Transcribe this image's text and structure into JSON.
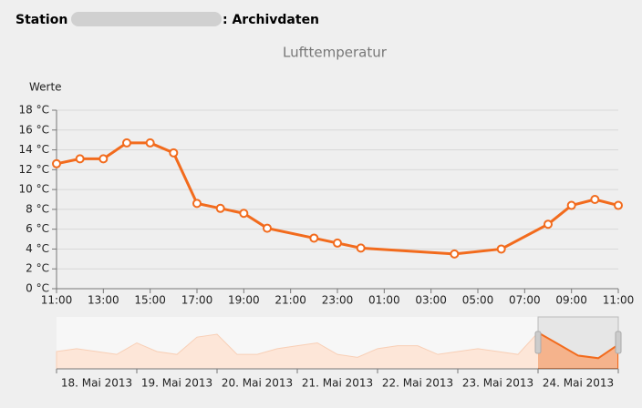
{
  "header": {
    "prefix": "Station",
    "suffix": ": Archivdaten"
  },
  "chart_data": {
    "type": "line",
    "title": "Lufttemperatur",
    "y_label": "Werte",
    "x": [
      11,
      12,
      13,
      14,
      15,
      16,
      17,
      18,
      19,
      20,
      22,
      23,
      24,
      28,
      30,
      32,
      33,
      34,
      35
    ],
    "series": [
      {
        "name": "Lufttemperatur",
        "color": "#f26b1d",
        "values": [
          12.6,
          13.1,
          13.1,
          14.7,
          14.7,
          13.7,
          8.6,
          8.1,
          7.6,
          6.1,
          5.1,
          4.6,
          4.1,
          3.5,
          4.0,
          6.5,
          8.4,
          9.0,
          8.4
        ]
      }
    ],
    "xlim": [
      11,
      35
    ],
    "xticks": [
      {
        "value": 11,
        "label": "11:00"
      },
      {
        "value": 13,
        "label": "13:00"
      },
      {
        "value": 15,
        "label": "15:00"
      },
      {
        "value": 17,
        "label": "17:00"
      },
      {
        "value": 19,
        "label": "19:00"
      },
      {
        "value": 21,
        "label": "21:00"
      },
      {
        "value": 23,
        "label": "23:00"
      },
      {
        "value": 25,
        "label": "01:00"
      },
      {
        "value": 27,
        "label": "03:00"
      },
      {
        "value": 29,
        "label": "05:00"
      },
      {
        "value": 31,
        "label": "07:00"
      },
      {
        "value": 33,
        "label": "09:00"
      },
      {
        "value": 35,
        "label": "11:00"
      }
    ],
    "ylim": [
      0,
      18
    ],
    "yticks": [
      {
        "value": 0,
        "label": "0 °C"
      },
      {
        "value": 2,
        "label": "2 °C"
      },
      {
        "value": 4,
        "label": "4 °C"
      },
      {
        "value": 6,
        "label": "6 °C"
      },
      {
        "value": 8,
        "label": "8 °C"
      },
      {
        "value": 10,
        "label": "10 °C"
      },
      {
        "value": 12,
        "label": "12 °C"
      },
      {
        "value": 14,
        "label": "14 °C"
      },
      {
        "value": 16,
        "label": "16 °C"
      },
      {
        "value": 18,
        "label": "18 °C"
      }
    ],
    "grid": true,
    "navigator": {
      "x": [
        0,
        0.25,
        0.5,
        0.75,
        1,
        1.25,
        1.5,
        1.75,
        2,
        2.25,
        2.5,
        2.75,
        3,
        3.25,
        3.5,
        3.75,
        4,
        4.25,
        4.5,
        4.75,
        5,
        5.25,
        5.5,
        5.75,
        6,
        6.25,
        6.5,
        6.75,
        7
      ],
      "values": [
        6,
        7,
        6,
        5,
        9,
        6,
        5,
        11,
        12,
        5,
        5,
        7,
        8,
        9,
        5,
        4,
        7,
        8,
        8,
        5,
        6,
        7,
        6,
        5,
        12.6,
        8.6,
        4.6,
        3.7,
        8.4
      ],
      "xlim": [
        0,
        7
      ],
      "ylim": [
        0,
        18
      ],
      "selected": [
        6,
        7
      ],
      "xticks": [
        {
          "value": 0.5,
          "label": "18. Mai 2013"
        },
        {
          "value": 1.5,
          "label": "19. Mai 2013"
        },
        {
          "value": 2.5,
          "label": "20. Mai 2013"
        },
        {
          "value": 3.5,
          "label": "21. Mai 2013"
        },
        {
          "value": 4.5,
          "label": "22. Mai 2013"
        },
        {
          "value": 5.5,
          "label": "23. Mai 2013"
        },
        {
          "value": 6.5,
          "label": "24. Mai 2013"
        }
      ]
    }
  }
}
